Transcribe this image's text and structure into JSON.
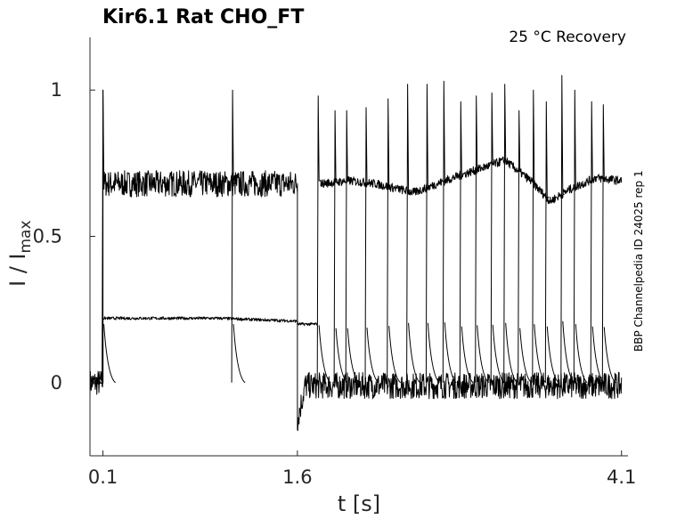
{
  "chart_data": {
    "type": "line",
    "title": "Kir6.1  Rat  CHO_FT",
    "subtitle": "25 °C  Recovery",
    "side_note": "BBP Channelpedia ID 24025 rep 1",
    "xlabel": "t [s]",
    "ylabel_main": "I / I",
    "ylabel_sub": "max",
    "xlim": [
      0.0,
      4.15
    ],
    "ylim": [
      -0.25,
      1.18
    ],
    "x_ticks": [
      0.1,
      1.6,
      4.1
    ],
    "x_tick_labels": [
      "0.1",
      "1.6",
      "4.1"
    ],
    "y_ticks": [
      0,
      0.5,
      1
    ],
    "y_tick_labels": [
      "0",
      "0.5",
      "1"
    ],
    "grid": false,
    "series": [
      {
        "role": "conditioning-pulse",
        "points": [
          [
            0.0,
            0.0
          ],
          [
            0.1,
            0.0
          ],
          [
            0.1,
            1.0
          ],
          [
            0.105,
            0.68
          ],
          [
            1.6,
            0.68
          ],
          [
            1.6,
            -0.13
          ],
          [
            1.66,
            -0.01
          ],
          [
            4.1,
            -0.01
          ]
        ],
        "band": 0.09
      },
      {
        "role": "steady-state",
        "points": [
          [
            0.0,
            0.0
          ],
          [
            0.1,
            0.0
          ],
          [
            0.1,
            0.22
          ],
          [
            1.0,
            0.22
          ],
          [
            1.6,
            0.21
          ],
          [
            1.6,
            0.2
          ],
          [
            1.75,
            0.2
          ]
        ],
        "band": 0.01
      },
      {
        "role": "recovery-envelope",
        "points": [
          [
            1.78,
            0.68
          ],
          [
            2.0,
            0.69
          ],
          [
            2.2,
            0.68
          ],
          [
            2.5,
            0.65
          ],
          [
            2.8,
            0.7
          ],
          [
            3.0,
            0.73
          ],
          [
            3.2,
            0.76
          ],
          [
            3.4,
            0.69
          ],
          [
            3.55,
            0.62
          ],
          [
            3.7,
            0.66
          ],
          [
            3.9,
            0.7
          ],
          [
            4.1,
            0.69
          ]
        ],
        "band": 0.03
      },
      {
        "role": "test-pulses",
        "spikes": [
          {
            "x": 0.1,
            "peak": 1.0
          },
          {
            "x": 1.1,
            "peak": 1.0
          },
          {
            "x": 1.76,
            "peak": 0.98
          },
          {
            "x": 1.89,
            "peak": 0.93
          },
          {
            "x": 1.98,
            "peak": 0.93
          },
          {
            "x": 2.13,
            "peak": 0.94
          },
          {
            "x": 2.3,
            "peak": 0.97
          },
          {
            "x": 2.45,
            "peak": 1.02
          },
          {
            "x": 2.6,
            "peak": 1.02
          },
          {
            "x": 2.73,
            "peak": 1.03
          },
          {
            "x": 2.86,
            "peak": 0.96
          },
          {
            "x": 2.98,
            "peak": 0.98
          },
          {
            "x": 3.1,
            "peak": 0.99
          },
          {
            "x": 3.2,
            "peak": 1.02
          },
          {
            "x": 3.31,
            "peak": 0.93
          },
          {
            "x": 3.42,
            "peak": 1.0
          },
          {
            "x": 3.52,
            "peak": 0.96
          },
          {
            "x": 3.64,
            "peak": 1.05
          },
          {
            "x": 3.74,
            "peak": 1.0
          },
          {
            "x": 3.87,
            "peak": 0.96
          },
          {
            "x": 3.96,
            "peak": 0.95
          }
        ]
      }
    ]
  }
}
